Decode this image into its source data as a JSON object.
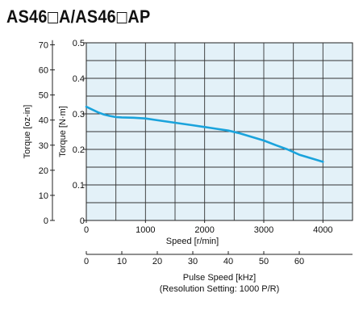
{
  "title": {
    "part1": "AS46",
    "part2": "A/AS46",
    "part3": "AP"
  },
  "chart_data": {
    "type": "line",
    "x_label": "Speed [r/min]",
    "x_ticks": [
      0,
      1000,
      2000,
      3000,
      4000
    ],
    "xlim": [
      0,
      4500
    ],
    "y_label": "Torque [N·m]",
    "y_ticks": [
      0,
      0.1,
      0.2,
      0.3,
      0.4,
      0.5
    ],
    "y_tick_labels": [
      "0",
      "0.1",
      "0.2",
      "0.3",
      "0.4",
      "0.5"
    ],
    "ylim": [
      0,
      0.5
    ],
    "y2_label": "Torque [oz-in]",
    "y2_ticks": [
      0,
      10,
      20,
      30,
      40,
      50,
      60,
      70
    ],
    "y2_tick_labels": [
      "0",
      "10",
      "20",
      "30",
      "40",
      "50",
      "60",
      "70"
    ],
    "x2_label": "Pulse Speed [kHz]",
    "x2_sublabel": "(Resolution Setting: 1000 P/R)",
    "x2_ticks": [
      0,
      10,
      20,
      30,
      40,
      50,
      60
    ],
    "grid": true,
    "background_color": "#e3f1f8",
    "line_color": "#1aa3dc",
    "series": [
      {
        "x": [
          0,
          100,
          200,
          300,
          400,
          500,
          600,
          800,
          1000,
          1200,
          1500,
          1800,
          2000,
          2200,
          2400,
          2600,
          2800,
          3000,
          3200,
          3400,
          3600,
          3800,
          4000
        ],
        "values": [
          0.32,
          0.312,
          0.304,
          0.298,
          0.294,
          0.291,
          0.29,
          0.289,
          0.287,
          0.282,
          0.275,
          0.268,
          0.263,
          0.258,
          0.253,
          0.245,
          0.235,
          0.225,
          0.212,
          0.2,
          0.185,
          0.175,
          0.165
        ]
      }
    ]
  }
}
